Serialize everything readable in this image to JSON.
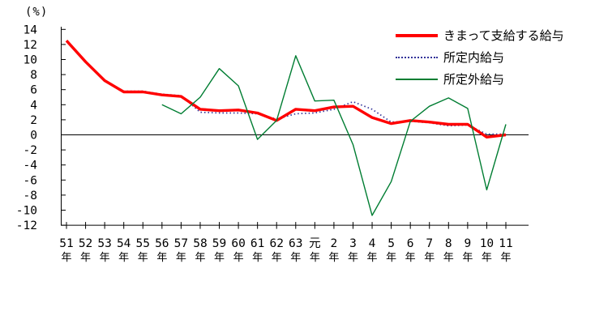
{
  "chart_data": {
    "type": "line",
    "title": "",
    "unit_label": "(%)",
    "grid": "none",
    "zero_line": true,
    "legend_position": "top-right",
    "y_axis": {
      "min": -12,
      "max": 14,
      "step": 2,
      "tick_labels": [
        "14",
        "12",
        "10",
        "8",
        "6",
        "4",
        "2",
        "0",
        "-2",
        "-4",
        "-6",
        "-8",
        "-10",
        "-12"
      ]
    },
    "x_axis": {
      "tick_suffix": "年",
      "categories": [
        "51",
        "52",
        "53",
        "54",
        "55",
        "56",
        "57",
        "58",
        "59",
        "60",
        "61",
        "62",
        "63",
        "元",
        "2",
        "3",
        "4",
        "5",
        "6",
        "7",
        "8",
        "9",
        "10",
        "11"
      ]
    },
    "series": [
      {
        "name": "きまって支給する給与",
        "color": "#ff0000",
        "line_style": "solid-thick",
        "values": [
          12.5,
          9.7,
          7.2,
          5.7,
          5.7,
          5.3,
          5.1,
          3.4,
          3.2,
          3.3,
          2.9,
          1.9,
          3.4,
          3.2,
          3.7,
          3.8,
          2.3,
          1.5,
          1.9,
          1.7,
          1.4,
          1.4,
          -0.3,
          0.0
        ]
      },
      {
        "name": "所定内給与",
        "color": "#333399",
        "line_style": "dotted",
        "values": [
          12.5,
          9.7,
          7.2,
          5.8,
          5.8,
          5.4,
          5.2,
          3.0,
          2.9,
          2.9,
          2.8,
          2.1,
          2.8,
          2.9,
          3.4,
          4.4,
          3.4,
          1.7,
          1.8,
          1.6,
          1.2,
          1.3,
          0.1,
          0.1
        ]
      },
      {
        "name": "所定外給与",
        "color": "#007d32",
        "line_style": "solid-thin",
        "values": [
          null,
          null,
          null,
          null,
          null,
          4.0,
          2.8,
          5.0,
          8.8,
          6.5,
          -0.6,
          1.9,
          10.5,
          4.5,
          4.6,
          -1.3,
          -10.7,
          -6.2,
          1.8,
          3.8,
          4.9,
          3.5,
          -7.3,
          1.4
        ]
      }
    ]
  }
}
